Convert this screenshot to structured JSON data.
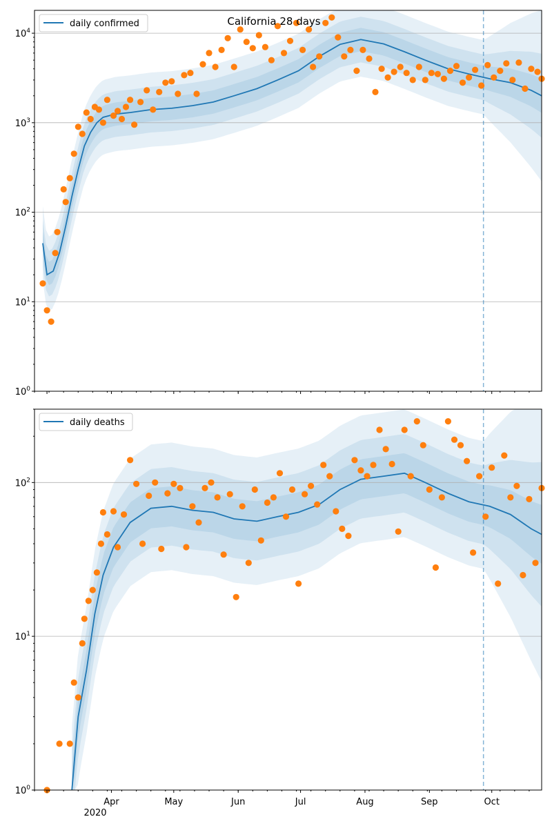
{
  "chart_data": [
    {
      "type": "line",
      "title": "California 28 days",
      "legend": [
        "daily confirmed"
      ],
      "legend_position": "top-left",
      "yscale": "log",
      "ylim": [
        1,
        18000
      ],
      "y_ticks": [
        1,
        10,
        100,
        1000,
        10000
      ],
      "y_tick_labels": [
        "10^0",
        "10^1",
        "10^2",
        "10^3",
        "10^4"
      ],
      "x_tick_labels": [],
      "grid": "horizontal",
      "forecast_start": "2020-09-27",
      "series": [
        {
          "name": "daily confirmed",
          "x": [
            "2020-02-28",
            "2020-03-01",
            "2020-03-04",
            "2020-03-07",
            "2020-03-10",
            "2020-03-13",
            "2020-03-16",
            "2020-03-19",
            "2020-03-22",
            "2020-03-25",
            "2020-03-28",
            "2020-03-31",
            "2020-04-03",
            "2020-04-10",
            "2020-04-20",
            "2020-04-30",
            "2020-05-10",
            "2020-05-20",
            "2020-05-30",
            "2020-06-10",
            "2020-06-20",
            "2020-06-30",
            "2020-07-10",
            "2020-07-20",
            "2020-07-30",
            "2020-08-10",
            "2020-08-20",
            "2020-08-30",
            "2020-09-10",
            "2020-09-20",
            "2020-09-30",
            "2020-10-10",
            "2020-10-20",
            "2020-10-25"
          ],
          "y": [
            45,
            20,
            22,
            35,
            70,
            150,
            300,
            550,
            780,
            1000,
            1150,
            1200,
            1250,
            1300,
            1400,
            1450,
            1550,
            1700,
            2000,
            2400,
            3000,
            3800,
            5500,
            7500,
            8500,
            7600,
            6200,
            5000,
            4000,
            3500,
            3100,
            2800,
            2300,
            2000
          ]
        }
      ],
      "scatter": {
        "name": "daily confirmed observations",
        "x": [
          "2020-02-28",
          "2020-03-01",
          "2020-03-03",
          "2020-03-05",
          "2020-03-06",
          "2020-03-09",
          "2020-03-10",
          "2020-03-12",
          "2020-03-14",
          "2020-03-16",
          "2020-03-18",
          "2020-03-20",
          "2020-03-22",
          "2020-03-24",
          "2020-03-26",
          "2020-03-28",
          "2020-03-30",
          "2020-04-02",
          "2020-04-04",
          "2020-04-06",
          "2020-04-08",
          "2020-04-10",
          "2020-04-12",
          "2020-04-15",
          "2020-04-18",
          "2020-04-21",
          "2020-04-24",
          "2020-04-27",
          "2020-04-30",
          "2020-05-03",
          "2020-05-06",
          "2020-05-09",
          "2020-05-12",
          "2020-05-15",
          "2020-05-18",
          "2020-05-21",
          "2020-05-24",
          "2020-05-27",
          "2020-05-30",
          "2020-06-02",
          "2020-06-05",
          "2020-06-08",
          "2020-06-11",
          "2020-06-14",
          "2020-06-17",
          "2020-06-20",
          "2020-06-23",
          "2020-06-26",
          "2020-06-29",
          "2020-07-02",
          "2020-07-05",
          "2020-07-07",
          "2020-07-10",
          "2020-07-13",
          "2020-07-16",
          "2020-07-19",
          "2020-07-22",
          "2020-07-25",
          "2020-07-28",
          "2020-07-31",
          "2020-08-03",
          "2020-08-06",
          "2020-08-09",
          "2020-08-12",
          "2020-08-15",
          "2020-08-18",
          "2020-08-21",
          "2020-08-24",
          "2020-08-27",
          "2020-08-30",
          "2020-09-02",
          "2020-09-05",
          "2020-09-08",
          "2020-09-11",
          "2020-09-14",
          "2020-09-17",
          "2020-09-20",
          "2020-09-23",
          "2020-09-26",
          "2020-09-29",
          "2020-10-02",
          "2020-10-05",
          "2020-10-08",
          "2020-10-11",
          "2020-10-14",
          "2020-10-17",
          "2020-10-20",
          "2020-10-23",
          "2020-10-25"
        ],
        "y": [
          16,
          8,
          6,
          35,
          60,
          180,
          130,
          240,
          450,
          900,
          750,
          1300,
          1100,
          1500,
          1400,
          1000,
          1800,
          1200,
          1350,
          1100,
          1500,
          1800,
          950,
          1700,
          2300,
          1400,
          2200,
          2800,
          2900,
          2100,
          3400,
          3600,
          2100,
          4500,
          6000,
          4200,
          6500,
          8800,
          4200,
          11000,
          8000,
          6800,
          9500,
          7000,
          5000,
          12000,
          6000,
          8200,
          13000,
          6500,
          11000,
          4200,
          5500,
          13000,
          15000,
          9000,
          5500,
          6500,
          3800,
          6500,
          5200,
          2200,
          4000,
          3200,
          3700,
          4200,
          3600,
          3000,
          4200,
          3000,
          3600,
          3500,
          3100,
          3800,
          4300,
          2800,
          3200,
          3900,
          2600,
          4400,
          3200,
          3800,
          4600,
          3000,
          4700,
          2400,
          4000,
          3700,
          3100
        ]
      }
    },
    {
      "type": "line",
      "title": "",
      "legend": [
        "daily deaths"
      ],
      "legend_position": "top-left",
      "yscale": "log",
      "ylim": [
        1,
        300
      ],
      "y_ticks": [
        1,
        10,
        100
      ],
      "y_tick_labels": [
        "10^0",
        "10^1",
        "10^2"
      ],
      "x_tick_labels": [
        "Apr",
        "May",
        "Jun",
        "Jul",
        "Aug",
        "Sep",
        "Oct"
      ],
      "x_year_label": "2020",
      "grid": "horizontal",
      "forecast_start": "2020-09-27",
      "series": [
        {
          "name": "daily deaths",
          "x": [
            "2020-03-13",
            "2020-03-16",
            "2020-03-20",
            "2020-03-24",
            "2020-03-28",
            "2020-04-02",
            "2020-04-10",
            "2020-04-20",
            "2020-04-30",
            "2020-05-10",
            "2020-05-20",
            "2020-05-30",
            "2020-06-10",
            "2020-06-20",
            "2020-06-30",
            "2020-07-10",
            "2020-07-20",
            "2020-07-30",
            "2020-08-10",
            "2020-08-20",
            "2020-08-30",
            "2020-09-10",
            "2020-09-20",
            "2020-09-30",
            "2020-10-10",
            "2020-10-20",
            "2020-10-25"
          ],
          "y": [
            1,
            3,
            6,
            14,
            25,
            38,
            55,
            68,
            70,
            66,
            64,
            58,
            56,
            60,
            64,
            72,
            90,
            105,
            110,
            115,
            100,
            85,
            75,
            70,
            62,
            50,
            46
          ]
        }
      ],
      "scatter": {
        "name": "daily deaths observations",
        "x": [
          "2020-03-01",
          "2020-03-07",
          "2020-03-12",
          "2020-03-14",
          "2020-03-16",
          "2020-03-18",
          "2020-03-19",
          "2020-03-21",
          "2020-03-23",
          "2020-03-25",
          "2020-03-27",
          "2020-03-28",
          "2020-03-30",
          "2020-04-02",
          "2020-04-04",
          "2020-04-07",
          "2020-04-10",
          "2020-04-13",
          "2020-04-16",
          "2020-04-19",
          "2020-04-22",
          "2020-04-25",
          "2020-04-28",
          "2020-05-01",
          "2020-05-04",
          "2020-05-07",
          "2020-05-10",
          "2020-05-13",
          "2020-05-16",
          "2020-05-19",
          "2020-05-22",
          "2020-05-25",
          "2020-05-28",
          "2020-05-31",
          "2020-06-03",
          "2020-06-06",
          "2020-06-09",
          "2020-06-12",
          "2020-06-15",
          "2020-06-18",
          "2020-06-21",
          "2020-06-24",
          "2020-06-27",
          "2020-06-30",
          "2020-07-03",
          "2020-07-06",
          "2020-07-09",
          "2020-07-12",
          "2020-07-15",
          "2020-07-18",
          "2020-07-21",
          "2020-07-24",
          "2020-07-27",
          "2020-07-30",
          "2020-08-02",
          "2020-08-05",
          "2020-08-08",
          "2020-08-11",
          "2020-08-14",
          "2020-08-17",
          "2020-08-20",
          "2020-08-23",
          "2020-08-26",
          "2020-08-29",
          "2020-09-01",
          "2020-09-04",
          "2020-09-07",
          "2020-09-10",
          "2020-09-13",
          "2020-09-16",
          "2020-09-19",
          "2020-09-22",
          "2020-09-25",
          "2020-09-28",
          "2020-10-01",
          "2020-10-04",
          "2020-10-07",
          "2020-10-10",
          "2020-10-13",
          "2020-10-16",
          "2020-10-19",
          "2020-10-22",
          "2020-10-25"
        ],
        "y": [
          1,
          2,
          2,
          5,
          4,
          9,
          13,
          17,
          20,
          26,
          40,
          64,
          46,
          65,
          38,
          62,
          140,
          98,
          40,
          82,
          100,
          37,
          85,
          98,
          92,
          38,
          70,
          55,
          92,
          100,
          80,
          34,
          84,
          18,
          70,
          30,
          90,
          42,
          74,
          80,
          115,
          60,
          90,
          22,
          84,
          95,
          72,
          130,
          110,
          65,
          50,
          45,
          140,
          120,
          110,
          130,
          220,
          165,
          132,
          48,
          220,
          110,
          250,
          175,
          90,
          28,
          80,
          250,
          190,
          175,
          138,
          35,
          110,
          60,
          125,
          22,
          150,
          80,
          95,
          25,
          78,
          30,
          92
        ]
      }
    }
  ],
  "colors": {
    "line": "#1f77b4",
    "band": "#1f77b4",
    "points": "#ff7f0e",
    "forecast_line": "#1f77b4",
    "grid": "#b0b0b0",
    "axis": "#000000"
  }
}
